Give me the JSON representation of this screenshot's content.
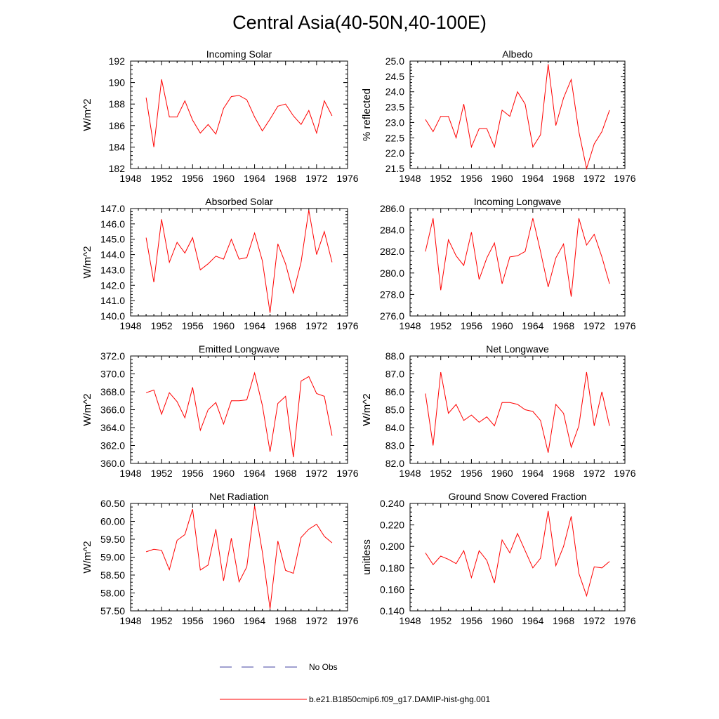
{
  "figure": {
    "title": "Central Asia(40-50N,40-100E)",
    "legend": [
      {
        "label": "No Obs",
        "style": "dashed",
        "color": "#4040a0"
      },
      {
        "label": "b.e21.B1850cmip6.f09_g17.DAMIP-hist-ghg.001",
        "style": "solid",
        "color": "#ff0000"
      }
    ]
  },
  "chart_data": [
    {
      "type": "line",
      "title": "Incoming Solar",
      "ylabel": "W/m^2",
      "xlim": [
        1948,
        1976
      ],
      "ylim": [
        182,
        192
      ],
      "xticks": [
        1948,
        1952,
        1956,
        1960,
        1964,
        1968,
        1972,
        1976
      ],
      "yticks": [
        "182",
        "184",
        "186",
        "188",
        "190",
        "192"
      ],
      "x": [
        1950,
        1951,
        1952,
        1953,
        1954,
        1955,
        1956,
        1957,
        1958,
        1959,
        1960,
        1961,
        1962,
        1963,
        1964,
        1965,
        1966,
        1967,
        1968,
        1969,
        1970,
        1971,
        1972,
        1973,
        1974
      ],
      "series": [
        {
          "values": [
            188.6,
            184.0,
            190.3,
            186.8,
            186.8,
            188.3,
            186.5,
            185.3,
            186.1,
            185.2,
            187.6,
            188.7,
            188.8,
            188.4,
            186.8,
            185.5,
            186.6,
            187.8,
            188.0,
            186.9,
            186.1,
            187.4,
            185.3,
            188.3,
            186.9
          ]
        }
      ]
    },
    {
      "type": "line",
      "title": "Albedo",
      "ylabel": "% reflected",
      "xlim": [
        1948,
        1976
      ],
      "ylim": [
        21.5,
        25.0
      ],
      "xticks": [
        1948,
        1952,
        1956,
        1960,
        1964,
        1968,
        1972,
        1976
      ],
      "yticks": [
        "21.5",
        "22.0",
        "22.5",
        "23.0",
        "23.5",
        "24.0",
        "24.5",
        "25.0"
      ],
      "x": [
        1950,
        1951,
        1952,
        1953,
        1954,
        1955,
        1956,
        1957,
        1958,
        1959,
        1960,
        1961,
        1962,
        1963,
        1964,
        1965,
        1966,
        1967,
        1968,
        1969,
        1970,
        1971,
        1972,
        1973,
        1974
      ],
      "series": [
        {
          "values": [
            23.1,
            22.7,
            23.2,
            23.2,
            22.5,
            23.6,
            22.2,
            22.8,
            22.8,
            22.2,
            23.4,
            23.2,
            24.0,
            23.6,
            22.2,
            22.6,
            24.9,
            22.9,
            23.8,
            24.4,
            22.7,
            21.5,
            22.3,
            22.7,
            23.4
          ]
        }
      ]
    },
    {
      "type": "line",
      "title": "Absorbed Solar",
      "ylabel": "W/m^2",
      "xlim": [
        1948,
        1976
      ],
      "ylim": [
        140.0,
        147.0
      ],
      "xticks": [
        1948,
        1952,
        1956,
        1960,
        1964,
        1968,
        1972,
        1976
      ],
      "yticks": [
        "140.0",
        "141.0",
        "142.0",
        "143.0",
        "144.0",
        "145.0",
        "146.0",
        "147.0"
      ],
      "x": [
        1950,
        1951,
        1952,
        1953,
        1954,
        1955,
        1956,
        1957,
        1958,
        1959,
        1960,
        1961,
        1962,
        1963,
        1964,
        1965,
        1966,
        1967,
        1968,
        1969,
        1970,
        1971,
        1972,
        1973,
        1974
      ],
      "series": [
        {
          "values": [
            145.1,
            142.2,
            146.3,
            143.5,
            144.8,
            144.1,
            145.1,
            143.0,
            143.4,
            143.9,
            143.7,
            145.0,
            143.7,
            143.8,
            145.4,
            143.6,
            140.2,
            144.7,
            143.4,
            141.5,
            143.5,
            146.9,
            144.0,
            145.5,
            143.5
          ]
        }
      ]
    },
    {
      "type": "line",
      "title": "Incoming Longwave",
      "ylabel": "",
      "xlim": [
        1948,
        1976
      ],
      "ylim": [
        276.0,
        286.0
      ],
      "xticks": [
        1948,
        1952,
        1956,
        1960,
        1964,
        1968,
        1972,
        1976
      ],
      "yticks": [
        "276.0",
        "278.0",
        "280.0",
        "282.0",
        "284.0",
        "286.0"
      ],
      "x": [
        1950,
        1951,
        1952,
        1953,
        1954,
        1955,
        1956,
        1957,
        1958,
        1959,
        1960,
        1961,
        1962,
        1963,
        1964,
        1965,
        1966,
        1967,
        1968,
        1969,
        1970,
        1971,
        1972,
        1973,
        1974
      ],
      "series": [
        {
          "values": [
            282.0,
            285.1,
            278.4,
            283.1,
            281.6,
            280.7,
            283.8,
            279.4,
            281.4,
            282.8,
            279.0,
            281.5,
            281.6,
            282.0,
            285.1,
            282.0,
            278.7,
            281.4,
            282.7,
            277.8,
            285.1,
            282.6,
            283.6,
            281.5,
            279.0
          ]
        }
      ]
    },
    {
      "type": "line",
      "title": "Emitted Longwave",
      "ylabel": "W/m^2",
      "xlim": [
        1948,
        1976
      ],
      "ylim": [
        360.0,
        372.0
      ],
      "xticks": [
        1948,
        1952,
        1956,
        1960,
        1964,
        1968,
        1972,
        1976
      ],
      "yticks": [
        "360.0",
        "362.0",
        "364.0",
        "366.0",
        "368.0",
        "370.0",
        "372.0"
      ],
      "x": [
        1950,
        1951,
        1952,
        1953,
        1954,
        1955,
        1956,
        1957,
        1958,
        1959,
        1960,
        1961,
        1962,
        1963,
        1964,
        1965,
        1966,
        1967,
        1968,
        1969,
        1970,
        1971,
        1972,
        1973,
        1974
      ],
      "series": [
        {
          "values": [
            367.9,
            368.2,
            365.5,
            367.9,
            366.9,
            365.1,
            368.5,
            363.7,
            366.0,
            366.8,
            364.4,
            367.0,
            367.0,
            367.1,
            370.1,
            366.5,
            361.3,
            366.7,
            367.5,
            360.7,
            369.2,
            369.7,
            367.8,
            367.5,
            363.1
          ]
        }
      ]
    },
    {
      "type": "line",
      "title": "Net Longwave",
      "ylabel": "W/m^2",
      "xlim": [
        1948,
        1976
      ],
      "ylim": [
        82.0,
        88.0
      ],
      "xticks": [
        1948,
        1952,
        1956,
        1960,
        1964,
        1968,
        1972,
        1976
      ],
      "yticks": [
        "82.0",
        "83.0",
        "84.0",
        "85.0",
        "86.0",
        "87.0",
        "88.0"
      ],
      "x": [
        1950,
        1951,
        1952,
        1953,
        1954,
        1955,
        1956,
        1957,
        1958,
        1959,
        1960,
        1961,
        1962,
        1963,
        1964,
        1965,
        1966,
        1967,
        1968,
        1969,
        1970,
        1971,
        1972,
        1973,
        1974
      ],
      "series": [
        {
          "values": [
            85.9,
            83.0,
            87.1,
            84.8,
            85.3,
            84.4,
            84.7,
            84.3,
            84.6,
            84.1,
            85.4,
            85.4,
            85.3,
            85.0,
            84.9,
            84.4,
            82.6,
            85.3,
            84.8,
            82.9,
            84.1,
            87.1,
            84.1,
            86.0,
            84.1
          ]
        }
      ]
    },
    {
      "type": "line",
      "title": "Net Radiation",
      "ylabel": "W/m^2",
      "xlim": [
        1948,
        1976
      ],
      "ylim": [
        57.5,
        60.5
      ],
      "xticks": [
        1948,
        1952,
        1956,
        1960,
        1964,
        1968,
        1972,
        1976
      ],
      "yticks": [
        "57.50",
        "58.00",
        "58.50",
        "59.00",
        "59.50",
        "60.00",
        "60.50"
      ],
      "x": [
        1950,
        1951,
        1952,
        1953,
        1954,
        1955,
        1956,
        1957,
        1958,
        1959,
        1960,
        1961,
        1962,
        1963,
        1964,
        1965,
        1966,
        1967,
        1968,
        1969,
        1970,
        1971,
        1972,
        1973,
        1974
      ],
      "series": [
        {
          "values": [
            59.15,
            59.22,
            59.19,
            58.65,
            59.47,
            59.63,
            60.34,
            58.64,
            58.78,
            59.78,
            58.34,
            59.53,
            58.31,
            58.73,
            60.43,
            59.15,
            57.56,
            59.45,
            58.63,
            58.55,
            59.55,
            59.78,
            59.92,
            59.58,
            59.4
          ]
        }
      ]
    },
    {
      "type": "line",
      "title": "Ground Snow Covered Fraction",
      "ylabel": "unitless",
      "xlim": [
        1948,
        1976
      ],
      "ylim": [
        0.14,
        0.24
      ],
      "xticks": [
        1948,
        1952,
        1956,
        1960,
        1964,
        1968,
        1972,
        1976
      ],
      "yticks": [
        "0.140",
        "0.160",
        "0.180",
        "0.200",
        "0.220",
        "0.240"
      ],
      "x": [
        1950,
        1951,
        1952,
        1953,
        1954,
        1955,
        1956,
        1957,
        1958,
        1959,
        1960,
        1961,
        1962,
        1963,
        1964,
        1965,
        1966,
        1967,
        1968,
        1969,
        1970,
        1971,
        1972,
        1973,
        1974
      ],
      "series": [
        {
          "values": [
            0.194,
            0.183,
            0.191,
            0.188,
            0.184,
            0.196,
            0.171,
            0.196,
            0.187,
            0.166,
            0.206,
            0.194,
            0.212,
            0.196,
            0.18,
            0.189,
            0.233,
            0.182,
            0.2,
            0.228,
            0.175,
            0.154,
            0.181,
            0.18,
            0.186
          ]
        }
      ]
    }
  ]
}
